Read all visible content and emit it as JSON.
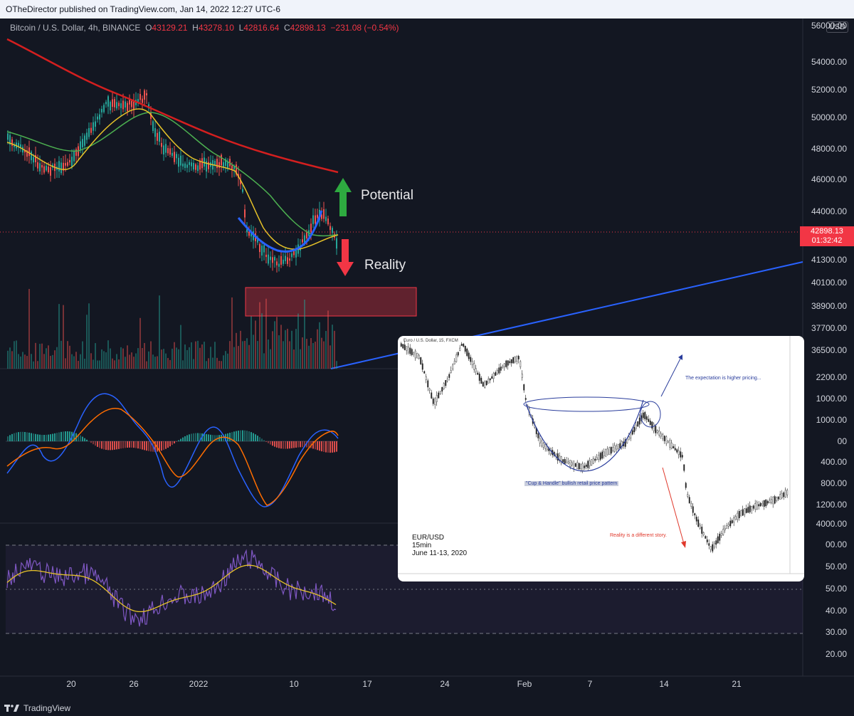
{
  "header": {
    "publisher": "OTheDirector published on TradingView.com, Jan 14, 2022 12:27 UTC-6"
  },
  "legend": {
    "symbol": "Bitcoin / U.S. Dollar, 4h, BINANCE",
    "o_label": "O",
    "o": "43129.21",
    "h_label": "H",
    "h": "43278.10",
    "l_label": "L",
    "l": "42816.64",
    "c_label": "C",
    "c": "42898.13",
    "change": "−231.08 (−0.54%)"
  },
  "currency": "USD",
  "price_scale": [
    "56000.00",
    "54000.00",
    "52000.00",
    "50000.00",
    "48000.00",
    "46000.00",
    "44000.00",
    "41300.00",
    "40100.00",
    "38900.00",
    "37700.00",
    "36500.00",
    "2200.00",
    "1000.00",
    "1000.00",
    "00",
    "400.00",
    "800.00",
    "1200.00",
    "4000.00",
    "00.00",
    "50.00",
    "50.00",
    "40.00",
    "30.00",
    "20.00"
  ],
  "current_price": {
    "value": "42898.13",
    "countdown": "01:32:42"
  },
  "time_axis": [
    "20",
    "26",
    "2022",
    "10",
    "17",
    "24",
    "Feb",
    "7",
    "14",
    "21"
  ],
  "annotations": {
    "potential": "Potential",
    "reality": "Reality"
  },
  "inset": {
    "title": "Euro / U.S. Dollar, 15, FXCM",
    "pair": "EUR/USD",
    "interval": "15min",
    "dates": "June 11-13, 2020",
    "expectation": "The expectation is higher pricing...",
    "reality": "Reality is a different story.",
    "pattern": "\"Cup & Handle\" bullish retail price pattern"
  },
  "footer": {
    "brand": "TradingView"
  },
  "colors": {
    "background": "#131722",
    "up": "#26a69a",
    "down": "#ef5350",
    "ma200": "#d41f1f",
    "ma50": "#4caf50",
    "ma20": "#e6c229",
    "trendline": "#2962ff",
    "rsi": "#7e57c2",
    "zone": "#f23645"
  }
}
